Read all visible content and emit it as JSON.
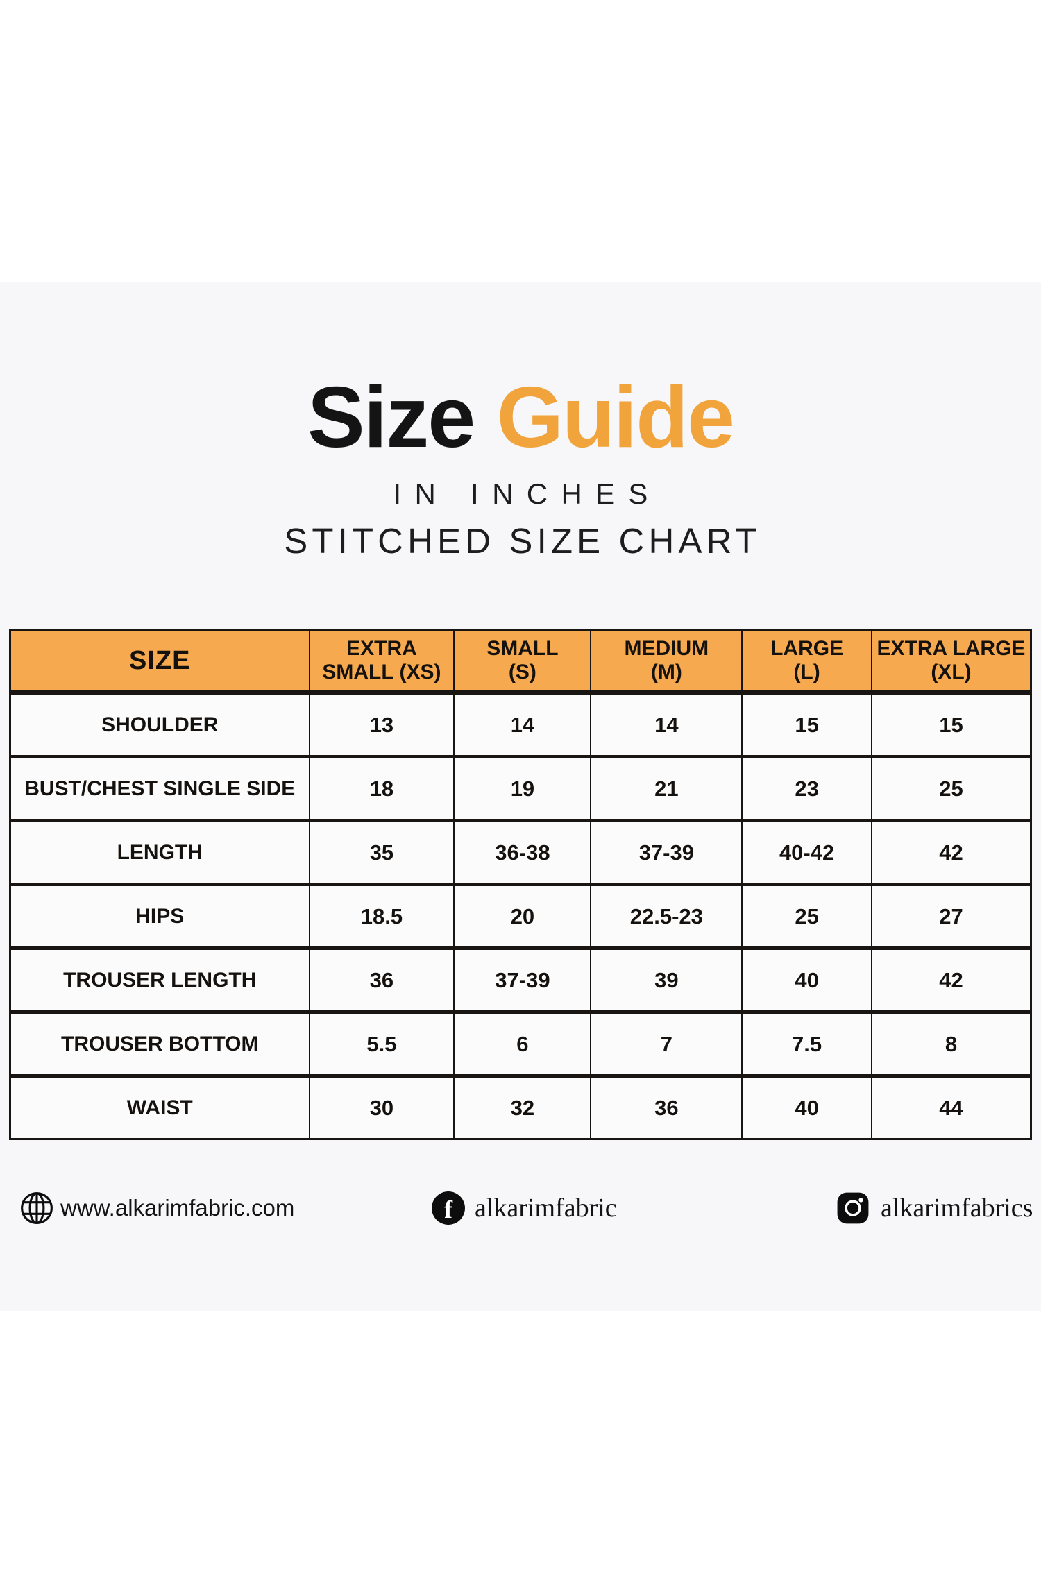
{
  "page": {
    "title_black": "Size",
    "title_orange": "Guide",
    "subtitle_line1": "IN INCHES",
    "subtitle_line2": "STITCHED SIZE CHART"
  },
  "colors": {
    "accent_orange_title": "#f1a33c",
    "header_orange": "#f6a94e",
    "table_border": "#181512",
    "band_background": "#f7f7f9",
    "cell_background": "#fbfbfc"
  },
  "chart_data": {
    "type": "table",
    "title": "Size Guide — Stitched Size Chart (inches)",
    "columns": [
      "SIZE",
      "EXTRA\nSMALL (XS)",
      "SMALL\n(S)",
      "MEDIUM\n(M)",
      "LARGE\n(L)",
      "EXTRA LARGE\n(XL)"
    ],
    "rows": [
      [
        "SHOULDER",
        "13",
        "14",
        "14",
        "15",
        "15"
      ],
      [
        "BUST/CHEST SINGLE SIDE",
        "18",
        "19",
        "21",
        "23",
        "25"
      ],
      [
        "LENGTH",
        "35",
        "36-38",
        "37-39",
        "40-42",
        "42"
      ],
      [
        "HIPS",
        "18.5",
        "20",
        "22.5-23",
        "25",
        "27"
      ],
      [
        "TROUSER LENGTH",
        "36",
        "37-39",
        "39",
        "40",
        "42"
      ],
      [
        "TROUSER BOTTOM",
        "5.5",
        "6",
        "7",
        "7.5",
        "8"
      ],
      [
        "WAIST",
        "30",
        "32",
        "36",
        "40",
        "44"
      ]
    ]
  },
  "footer": {
    "website": {
      "icon": "globe-icon",
      "text": "www.alkarimfabric.com"
    },
    "facebook": {
      "icon": "facebook-icon",
      "glyph": "f",
      "text": "alkarimfabric"
    },
    "instagram": {
      "icon": "instagram-icon",
      "text": "alkarimfabrics"
    }
  }
}
